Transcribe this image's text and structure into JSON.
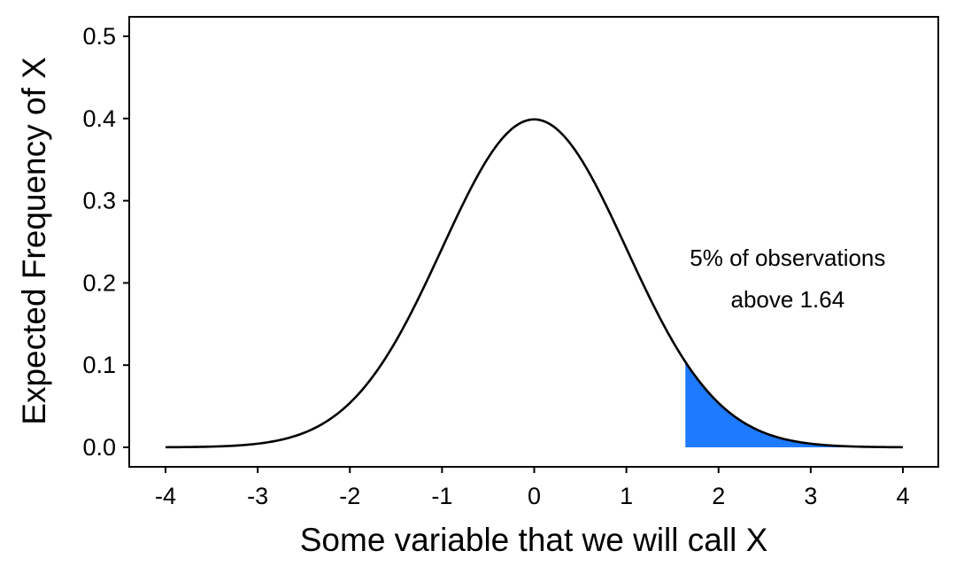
{
  "chart_data": {
    "type": "area",
    "xlabel": "Some variable that we will call X",
    "ylabel": "Expected Frequency of X",
    "xlim": [
      -4,
      4
    ],
    "ylim": [
      0,
      0.5
    ],
    "xticks": [
      "-4",
      "-3",
      "-2",
      "-1",
      "0",
      "1",
      "2",
      "3",
      "4"
    ],
    "yticks": [
      "0.0",
      "0.1",
      "0.2",
      "0.3",
      "0.4",
      "0.5"
    ],
    "grid": false,
    "legend": "none",
    "series": [
      {
        "kind": "line",
        "color": "#000000",
        "x": [
          -4.0,
          -3.5,
          -3.0,
          -2.5,
          -2.0,
          -1.5,
          -1.0,
          -0.5,
          0.0,
          0.5,
          1.0,
          1.5,
          1.64,
          2.0,
          2.5,
          3.0,
          3.5,
          4.0
        ],
        "y": [
          0.0001,
          0.0009,
          0.0044,
          0.0175,
          0.054,
          0.1295,
          0.242,
          0.3521,
          0.3989,
          0.3521,
          0.242,
          0.1295,
          0.104,
          0.054,
          0.0175,
          0.0044,
          0.0009,
          0.0001
        ]
      },
      {
        "kind": "shaded-area",
        "color": "#1e7bff",
        "x": [
          1.64,
          2.0,
          2.5,
          3.0,
          3.5,
          4.0
        ],
        "y": [
          0.104,
          0.054,
          0.0175,
          0.0044,
          0.0009,
          0.0001
        ]
      }
    ],
    "annotation": {
      "line1": "5% of observations",
      "line2": "above 1.64",
      "x": 2.75,
      "y1": 0.221,
      "y2": 0.17
    }
  }
}
